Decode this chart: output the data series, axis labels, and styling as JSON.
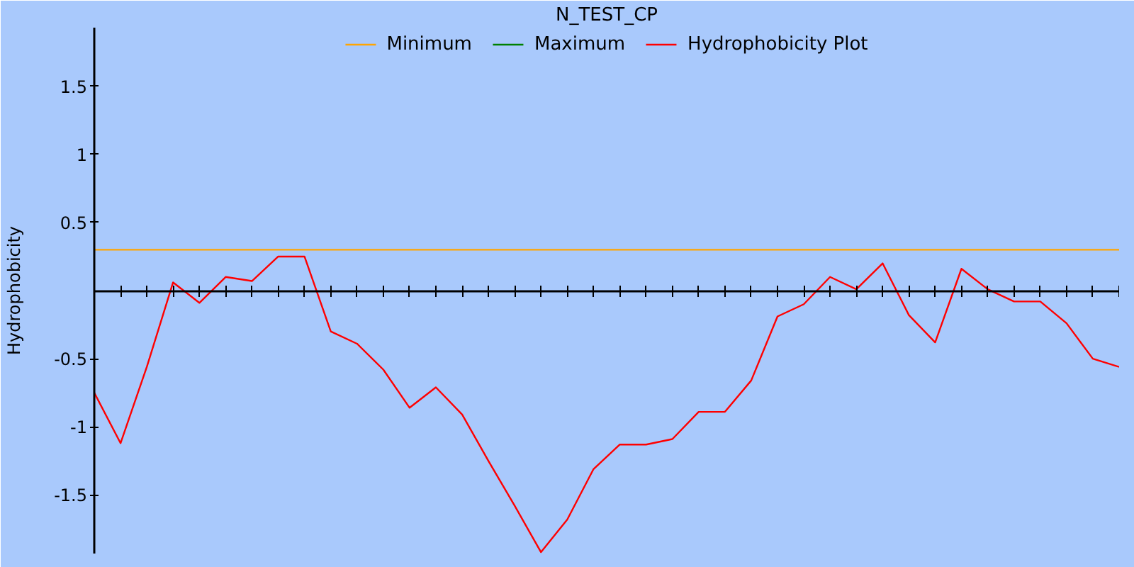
{
  "chart_data": {
    "type": "line",
    "title": "N_TEST_CP",
    "ylabel": "Hydrophobicity",
    "categories": [
      null,
      null,
      null,
      null,
      null,
      null,
      null,
      null,
      null,
      null,
      null,
      null,
      null,
      null,
      null,
      null,
      null,
      null,
      null,
      null,
      null,
      null,
      null,
      null,
      null,
      null,
      null,
      null,
      null,
      null,
      null,
      null,
      null,
      null,
      null,
      null,
      null,
      null,
      null,
      null
    ],
    "series": [
      {
        "name": "Minimum",
        "color": "#ffa500",
        "values": [
          0.3,
          0.3,
          0.3,
          0.3,
          0.3,
          0.3,
          0.3,
          0.3,
          0.3,
          0.3,
          0.3,
          0.3,
          0.3,
          0.3,
          0.3,
          0.3,
          0.3,
          0.3,
          0.3,
          0.3,
          0.3,
          0.3,
          0.3,
          0.3,
          0.3,
          0.3,
          0.3,
          0.3,
          0.3,
          0.3,
          0.3,
          0.3,
          0.3,
          0.3,
          0.3,
          0.3,
          0.3,
          0.3,
          0.3,
          0.3
        ]
      },
      {
        "name": "Maximum",
        "color": "#008000",
        "values": [
          null,
          null,
          null,
          null,
          null,
          null,
          null,
          null,
          null,
          null,
          null,
          null,
          null,
          null,
          null,
          null,
          null,
          null,
          null,
          null,
          null,
          null,
          null,
          null,
          null,
          null,
          null,
          null,
          null,
          null,
          null,
          null,
          null,
          null,
          null,
          null,
          null,
          null,
          null,
          null
        ]
      },
      {
        "name": "Hydrophobicity Plot",
        "color": "#ff0000",
        "values": [
          -0.75,
          -1.12,
          -0.56,
          0.06,
          -0.09,
          0.1,
          0.07,
          0.25,
          0.25,
          -0.3,
          -0.39,
          -0.58,
          -0.86,
          -0.71,
          -0.91,
          -1.25,
          -1.58,
          -1.92,
          -1.68,
          -1.31,
          -1.13,
          -1.13,
          -1.09,
          -0.89,
          -0.89,
          -0.66,
          -0.19,
          -0.1,
          0.1,
          0.01,
          0.2,
          -0.18,
          -0.38,
          0.16,
          0.01,
          -0.08,
          -0.08,
          -0.24,
          -0.5,
          -0.56
        ]
      }
    ],
    "ylim": [
      -1.93,
      1.93
    ],
    "yticks": [
      -1.5,
      -1,
      -0.5,
      0.5,
      1,
      1.5
    ],
    "legend": "top",
    "grid": false,
    "tick_labels": "y",
    "line_style": "solid"
  }
}
